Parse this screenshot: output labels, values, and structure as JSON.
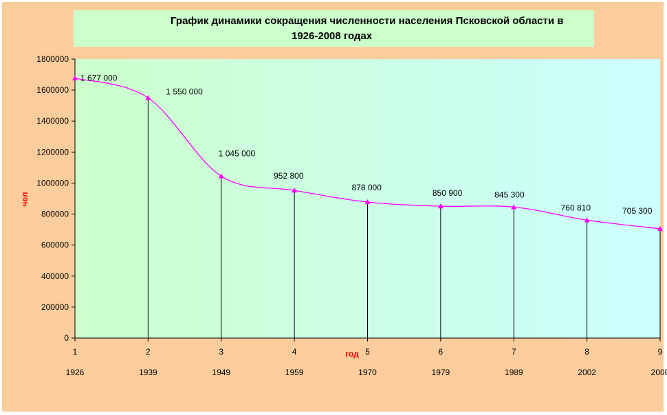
{
  "title_line1": "График динамики сокращения численности населения Псковской области в",
  "title_line2": "1926-2008 годах",
  "chart_data": {
    "type": "line",
    "title": "График динамики сокращения численности населения Псковской области в 1926-2008 годах",
    "xlabel": "год",
    "ylabel": "чел",
    "ylim": [
      0,
      1800000
    ],
    "y_ticks": [
      "0",
      "200000",
      "400000",
      "600000",
      "800000",
      "1000000",
      "1200000",
      "1400000",
      "1600000",
      "1800000"
    ],
    "categories": [
      "1",
      "2",
      "3",
      "4",
      "5",
      "6",
      "7",
      "8",
      "9"
    ],
    "years": [
      "1926",
      "1939",
      "1949",
      "1959",
      "1970",
      "1979",
      "1989",
      "2002",
      "2008"
    ],
    "values": [
      1677000,
      1550000,
      1045000,
      952800,
      878000,
      850900,
      845300,
      760810,
      705300
    ],
    "data_labels": [
      "1 677 000",
      "1 550 000",
      "1 045 000",
      "952 800",
      "878 000",
      "850 900",
      "845 300",
      "760 810",
      "705 300"
    ],
    "grid": false,
    "drop_lines": true,
    "colors": {
      "line": "#ff00ff",
      "marker": "#ff00ff",
      "axis_title": "#ff0000",
      "frame": "#fbcd9c",
      "title_box": "#ccffcc",
      "plot_left": "#ccffcc",
      "plot_right": "#ccffff"
    }
  }
}
